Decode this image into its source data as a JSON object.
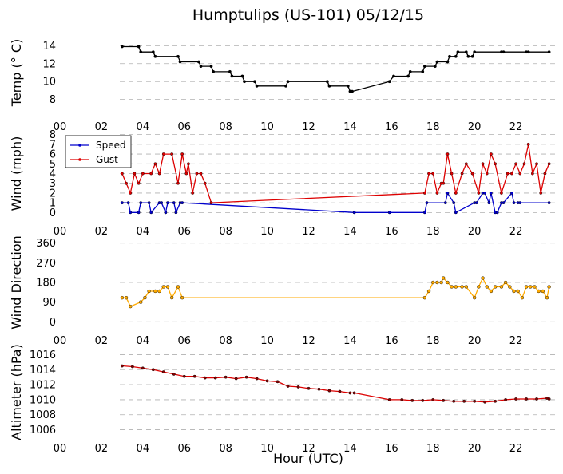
{
  "title": "Humptulips (US-101) 05/12/15",
  "xlabel": "Hour (UTC)",
  "x_ticks": [
    "00",
    "02",
    "04",
    "06",
    "08",
    "10",
    "12",
    "14",
    "16",
    "18",
    "20",
    "22"
  ],
  "colors": {
    "temp": "#000000",
    "speed": "#0000cc",
    "gust": "#dd0000",
    "direction_line": "#ffaa00",
    "altimeter_line": "#dd0000",
    "altimeter_marker": "#800000",
    "grid": "#b0b0b0"
  },
  "chart_data": [
    {
      "type": "line",
      "name": "temperature",
      "ylabel": "Temp ($^\\circ$C)",
      "ylabel_display": "Temp (° C)",
      "xlim": [
        0,
        24
      ],
      "ylim": [
        7,
        15
      ],
      "yticks": [
        "8",
        "10",
        "12",
        "14"
      ],
      "grid": "horizontal dashed",
      "x": [
        3.0,
        3.8,
        3.9,
        4.5,
        4.6,
        5.7,
        5.8,
        6.7,
        6.8,
        7.3,
        7.4,
        8.2,
        8.3,
        8.8,
        8.9,
        9.4,
        9.5,
        10.9,
        11.0,
        12.9,
        13.0,
        13.9,
        14.0,
        14.1,
        15.9,
        16.1,
        16.8,
        16.9,
        17.5,
        17.6,
        18.1,
        18.2,
        18.7,
        18.8,
        19.1,
        19.2,
        19.6,
        19.7,
        19.9,
        20.0,
        21.3,
        21.4,
        22.5,
        22.6,
        23.6
      ],
      "y": [
        13.9,
        13.9,
        13.3,
        13.3,
        12.8,
        12.8,
        12.2,
        12.2,
        11.7,
        11.7,
        11.1,
        11.1,
        10.6,
        10.6,
        10.0,
        10.0,
        9.5,
        9.5,
        10.0,
        10.0,
        9.5,
        9.5,
        8.9,
        8.9,
        10.0,
        10.6,
        10.6,
        11.1,
        11.1,
        11.7,
        11.7,
        12.2,
        12.2,
        12.8,
        12.8,
        13.3,
        13.3,
        12.8,
        12.8,
        13.3,
        13.3,
        13.3,
        13.3,
        13.3,
        13.3
      ]
    },
    {
      "type": "line",
      "name": "wind",
      "ylabel": "Wind (mph)",
      "xlim": [
        0,
        24
      ],
      "ylim": [
        0,
        8
      ],
      "yticks": [
        "0",
        "1",
        "2",
        "3",
        "4",
        "5",
        "6",
        "7",
        "8"
      ],
      "grid": "horizontal dashed",
      "legend": "upper-left",
      "series": [
        {
          "name": "Speed",
          "x": [
            3.0,
            3.3,
            3.4,
            3.8,
            3.9,
            4.3,
            4.4,
            4.8,
            4.9,
            5.1,
            5.2,
            5.5,
            5.6,
            5.8,
            5.9,
            14.2,
            15.9,
            17.6,
            17.7,
            18.6,
            18.7,
            19.0,
            19.1,
            20.0,
            20.1,
            20.4,
            20.5,
            20.7,
            20.8,
            21.0,
            21.1,
            21.3,
            21.4,
            21.8,
            21.9,
            22.1,
            22.2,
            23.6
          ],
          "y": [
            1,
            1,
            0,
            0,
            1,
            1,
            0,
            1,
            1,
            0,
            1,
            1,
            0,
            1,
            1,
            0,
            0,
            0,
            1,
            1,
            2,
            1,
            0,
            1,
            1,
            2,
            2,
            1,
            2,
            0,
            0,
            1,
            1,
            2,
            1,
            1,
            1,
            1
          ]
        },
        {
          "name": "Gust",
          "x": [
            3.0,
            3.2,
            3.4,
            3.6,
            3.8,
            4.0,
            4.4,
            4.6,
            4.8,
            5.0,
            5.4,
            5.7,
            5.9,
            6.1,
            6.2,
            6.4,
            6.6,
            6.8,
            7.0,
            7.3,
            17.6,
            17.8,
            18.0,
            18.2,
            18.4,
            18.5,
            18.7,
            18.9,
            19.1,
            19.4,
            19.6,
            19.9,
            20.2,
            20.4,
            20.6,
            20.8,
            21.0,
            21.3,
            21.6,
            21.8,
            22.0,
            22.2,
            22.4,
            22.6,
            22.8,
            23.0,
            23.2,
            23.4,
            23.6
          ],
          "y": [
            4,
            3,
            2,
            4,
            3,
            4,
            4,
            5,
            4,
            6,
            6,
            3,
            6,
            4,
            5,
            2,
            4,
            4,
            3,
            1,
            2,
            4,
            4,
            2,
            3,
            3,
            6,
            4,
            2,
            4,
            5,
            4,
            2,
            5,
            4,
            6,
            5,
            2,
            4,
            4,
            5,
            4,
            5,
            7,
            4,
            5,
            2,
            4,
            5
          ]
        }
      ]
    },
    {
      "type": "line",
      "name": "wind_direction",
      "ylabel": "Wind Direction",
      "xlim": [
        0,
        24
      ],
      "ylim": [
        0,
        360
      ],
      "yticks": [
        "0",
        "90",
        "180",
        "270",
        "360"
      ],
      "grid": "horizontal dashed",
      "x": [
        3.0,
        3.2,
        3.4,
        3.9,
        4.1,
        4.3,
        4.6,
        4.8,
        5.0,
        5.2,
        5.4,
        5.7,
        5.9,
        17.6,
        17.8,
        18.0,
        18.2,
        18.4,
        18.5,
        18.7,
        18.9,
        19.1,
        19.4,
        19.6,
        20.0,
        20.2,
        20.4,
        20.6,
        20.8,
        21.0,
        21.3,
        21.5,
        21.7,
        21.9,
        22.1,
        22.3,
        22.5,
        22.7,
        22.9,
        23.1,
        23.3,
        23.5,
        23.6
      ],
      "y": [
        110,
        110,
        70,
        90,
        110,
        140,
        140,
        140,
        160,
        160,
        110,
        160,
        110,
        110,
        140,
        180,
        180,
        180,
        200,
        180,
        160,
        160,
        160,
        160,
        110,
        160,
        200,
        160,
        140,
        160,
        160,
        180,
        160,
        140,
        140,
        110,
        160,
        160,
        160,
        140,
        140,
        110,
        160
      ]
    },
    {
      "type": "line",
      "name": "altimeter",
      "ylabel": "Altimeter (hPa)",
      "xlim": [
        0,
        24
      ],
      "ylim": [
        1006,
        1016
      ],
      "yticks": [
        "1006",
        "1008",
        "1010",
        "1012",
        "1014",
        "1016"
      ],
      "grid": "horizontal dashed",
      "xlabel": "Hour (UTC)",
      "x": [
        3.0,
        3.5,
        4.0,
        4.5,
        5.0,
        5.5,
        6.0,
        6.5,
        7.0,
        7.5,
        8.0,
        8.5,
        9.0,
        9.5,
        10.0,
        10.5,
        11.0,
        11.5,
        12.0,
        12.5,
        13.0,
        13.5,
        14.0,
        14.2,
        15.9,
        16.5,
        17.0,
        17.5,
        18.0,
        18.5,
        19.0,
        19.5,
        20.0,
        20.5,
        21.0,
        21.5,
        22.0,
        22.5,
        23.0,
        23.5,
        23.6
      ],
      "y": [
        1014.5,
        1014.4,
        1014.2,
        1014.0,
        1013.7,
        1013.4,
        1013.1,
        1013.1,
        1012.9,
        1012.9,
        1013.0,
        1012.8,
        1013.0,
        1012.8,
        1012.5,
        1012.4,
        1011.8,
        1011.7,
        1011.5,
        1011.4,
        1011.2,
        1011.1,
        1010.9,
        1010.9,
        1010.0,
        1010.0,
        1009.9,
        1009.9,
        1010.0,
        1009.9,
        1009.8,
        1009.8,
        1009.8,
        1009.7,
        1009.8,
        1010.0,
        1010.1,
        1010.1,
        1010.1,
        1010.2,
        1010.1
      ]
    }
  ]
}
